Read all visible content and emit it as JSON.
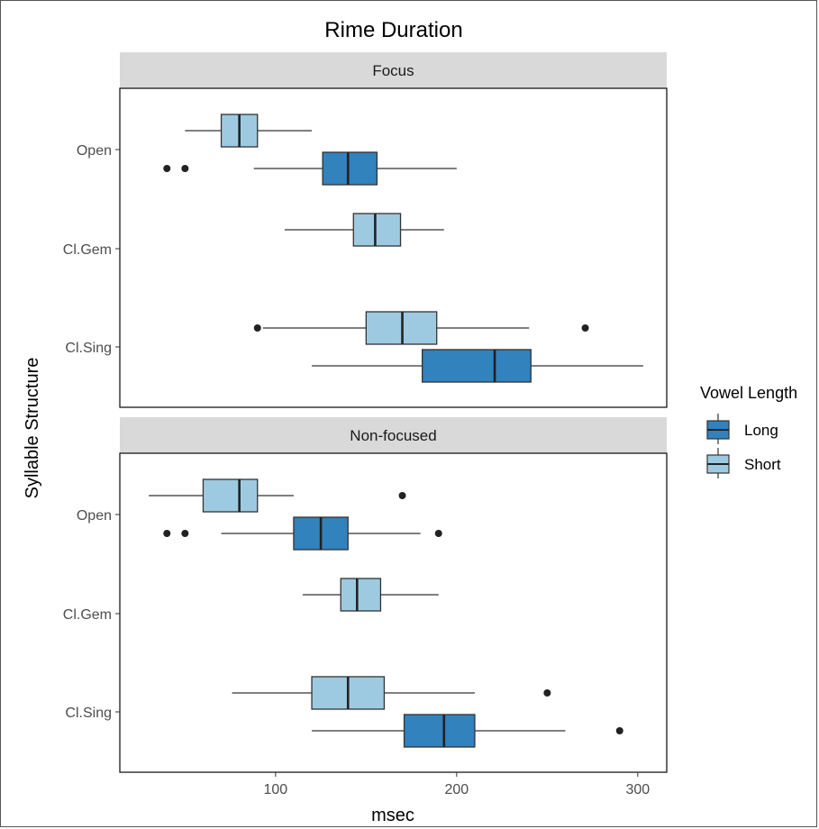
{
  "chart_data": {
    "type": "boxplot",
    "orientation": "horizontal",
    "title": "Rime Duration",
    "xlabel": "msec",
    "ylabel": "Syllable Structure",
    "xlim": [
      14,
      316
    ],
    "x_ticks": [
      100,
      200,
      300
    ],
    "categories": [
      "Open",
      "Cl.Gem",
      "Cl.Sing"
    ],
    "legend": {
      "title": "Vowel Length",
      "placement": "right",
      "entries": [
        {
          "label": "Long",
          "color": "#3182bd"
        },
        {
          "label": "Short",
          "color": "#9ecae1"
        }
      ]
    },
    "grid": false,
    "facets": [
      {
        "label": "Focus",
        "boxes": [
          {
            "category": "Open",
            "group": "Short",
            "whisker_low": 50,
            "q1": 70,
            "median": 80,
            "q3": 90,
            "whisker_high": 120,
            "outliers": []
          },
          {
            "category": "Open",
            "group": "Long",
            "whisker_low": 88,
            "q1": 126,
            "median": 140,
            "q3": 156,
            "whisker_high": 200,
            "outliers": [
              40,
              50
            ]
          },
          {
            "category": "Cl.Gem",
            "group": "Short",
            "whisker_low": 105,
            "q1": 143,
            "median": 155,
            "q3": 169,
            "whisker_high": 193,
            "outliers": []
          },
          {
            "category": "Cl.Sing",
            "group": "Short",
            "whisker_low": 93,
            "q1": 150,
            "median": 170,
            "q3": 189,
            "whisker_high": 240,
            "outliers": [
              90,
              271
            ]
          },
          {
            "category": "Cl.Sing",
            "group": "Long",
            "whisker_low": 120,
            "q1": 181,
            "median": 221,
            "q3": 241,
            "whisker_high": 303,
            "outliers": []
          }
        ]
      },
      {
        "label": "Non-focused",
        "boxes": [
          {
            "category": "Open",
            "group": "Short",
            "whisker_low": 30,
            "q1": 60,
            "median": 80,
            "q3": 90,
            "whisker_high": 110,
            "outliers": [
              170
            ]
          },
          {
            "category": "Open",
            "group": "Long",
            "whisker_low": 70,
            "q1": 110,
            "median": 125,
            "q3": 140,
            "whisker_high": 180,
            "outliers": [
              40,
              50,
              190
            ]
          },
          {
            "category": "Cl.Gem",
            "group": "Short",
            "whisker_low": 115,
            "q1": 136,
            "median": 145,
            "q3": 158,
            "whisker_high": 190,
            "outliers": []
          },
          {
            "category": "Cl.Sing",
            "group": "Short",
            "whisker_low": 76,
            "q1": 120,
            "median": 140,
            "q3": 160,
            "whisker_high": 210,
            "outliers": [
              250
            ]
          },
          {
            "category": "Cl.Sing",
            "group": "Long",
            "whisker_low": 120,
            "q1": 171,
            "median": 193,
            "q3": 210,
            "whisker_high": 260,
            "outliers": [
              290
            ]
          }
        ]
      }
    ]
  }
}
